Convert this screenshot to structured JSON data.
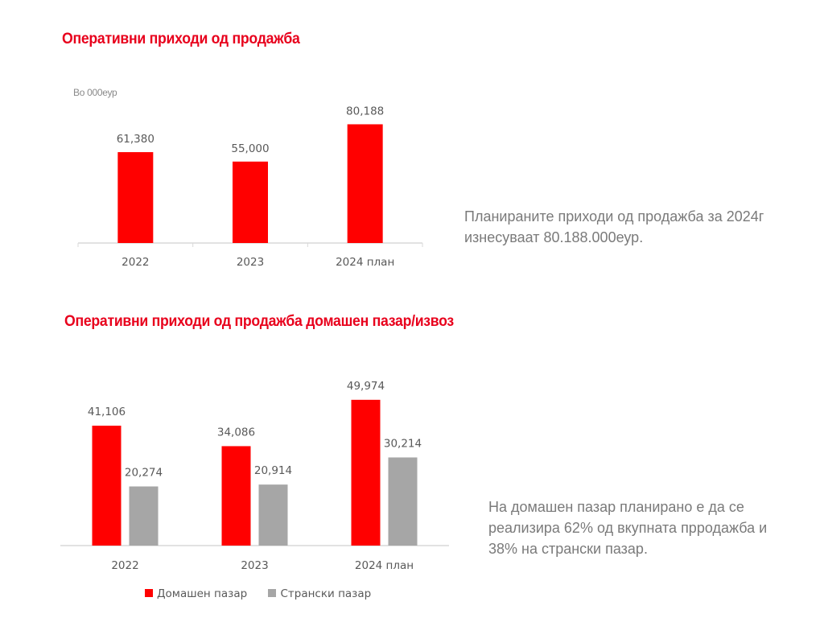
{
  "colors": {
    "domestic": "#ff0000",
    "foreign": "#a6a6a6",
    "heading": "#e8001c",
    "axis": "#d9d9d9"
  },
  "section1": {
    "title": "Оперативни приходи од продажба",
    "unit": "Во 000еур",
    "note_lines": [
      "Планираните приходи од продажба за 2024г",
      "изнесуваат 80.188.000еур."
    ]
  },
  "section2": {
    "title": "Оперативни приходи од продажба домашен пазар/извоз",
    "note_lines": [
      "На домашен пазар планирано е да се",
      "реализира 62% од вкупната прродажба и",
      "38% на странски пазар."
    ]
  },
  "chart_data": [
    {
      "type": "bar",
      "title": "Оперативни приходи од продажба",
      "ylabel": "Во 000еур",
      "categories": [
        "2022",
        "2023",
        "2024 план"
      ],
      "values": [
        61380,
        55000,
        80188
      ],
      "value_labels": [
        "61,380",
        "55,000",
        "80,188"
      ],
      "ylim": [
        0,
        165000
      ],
      "grid": false
    },
    {
      "type": "bar",
      "title": "Оперативни приходи од продажба домашен пазар/извоз",
      "categories": [
        "2022",
        "2023",
        "2024 план"
      ],
      "series": [
        {
          "name": "Домашен пазар",
          "values": [
            41106,
            34086,
            49974
          ],
          "value_labels": [
            "41,106",
            "34,086",
            "49,974"
          ]
        },
        {
          "name": "Странски пазар",
          "values": [
            20274,
            20914,
            30214
          ],
          "value_labels": [
            "20,274",
            "20,914",
            "30,214"
          ]
        }
      ],
      "ylim": [
        0,
        58000
      ],
      "grid": false,
      "legend": "bottom"
    }
  ]
}
